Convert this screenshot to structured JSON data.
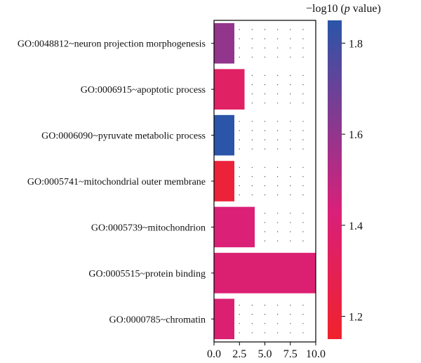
{
  "chart_data": {
    "type": "bar",
    "orientation": "horizontal",
    "categories": [
      "GO:0048812~neuron projection morphogenesis",
      "GO:0006915~apoptotic process",
      "GO:0006090~pyruvate metabolic process",
      "GO:0005741~mitochondrial outer membrane",
      "GO:0005739~mitochondrion",
      "GO:0005515~protein binding",
      "GO:0000785~chromatin"
    ],
    "values": [
      2,
      3,
      2,
      2,
      4,
      10,
      2
    ],
    "color_values": [
      1.6,
      1.35,
      1.85,
      1.2,
      1.42,
      1.4,
      1.4
    ],
    "xlim": [
      0,
      10
    ],
    "xticks": [
      0.0,
      2.5,
      5.0,
      7.5,
      10.0
    ],
    "xtick_labels": [
      "0.0",
      "2.5",
      "5.0",
      "7.5",
      "10.0"
    ],
    "colorbar": {
      "title_prefix": "−log10 (",
      "title_italic": "p",
      "title_suffix": " value)",
      "range": [
        1.15,
        1.85
      ],
      "ticks": [
        1.2,
        1.4,
        1.6,
        1.8
      ],
      "tick_labels": [
        "1.2",
        "1.4",
        "1.6",
        "1.8"
      ],
      "color_low": "#f0222c",
      "color_mid": "#d9207a",
      "color_high": "#2a55a8"
    },
    "grid": "dotted"
  }
}
